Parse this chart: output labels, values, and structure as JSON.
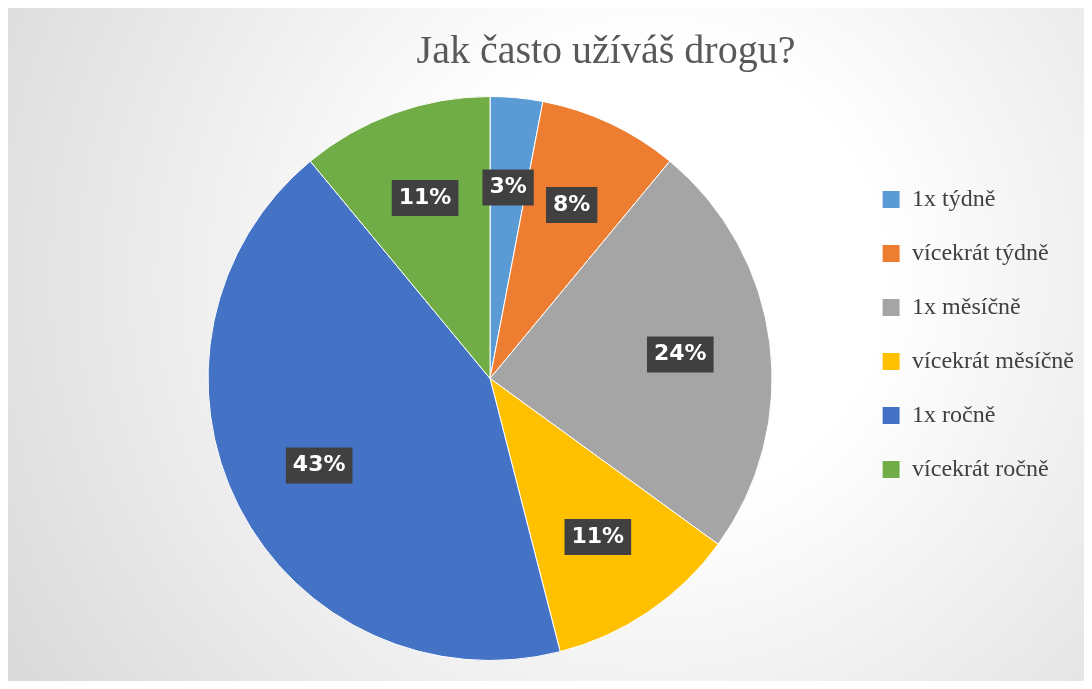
{
  "chart_data": {
    "type": "pie",
    "title": "Jak často užíváš drogu?",
    "categories": [
      "1x týdně",
      "vícekrát týdně",
      "1x měsíčně",
      "vícekrát měsíčně",
      "1x ročně",
      "vícekrát ročně"
    ],
    "values": [
      3,
      8,
      24,
      11,
      43,
      11
    ],
    "value_labels": [
      "3%",
      "8%",
      "24%",
      "11%",
      "43%",
      "11%"
    ],
    "colors": [
      "#5b9bd5",
      "#ed7d31",
      "#a5a5a5",
      "#ffc000",
      "#4472c4",
      "#70ad47"
    ],
    "legend": "right"
  }
}
